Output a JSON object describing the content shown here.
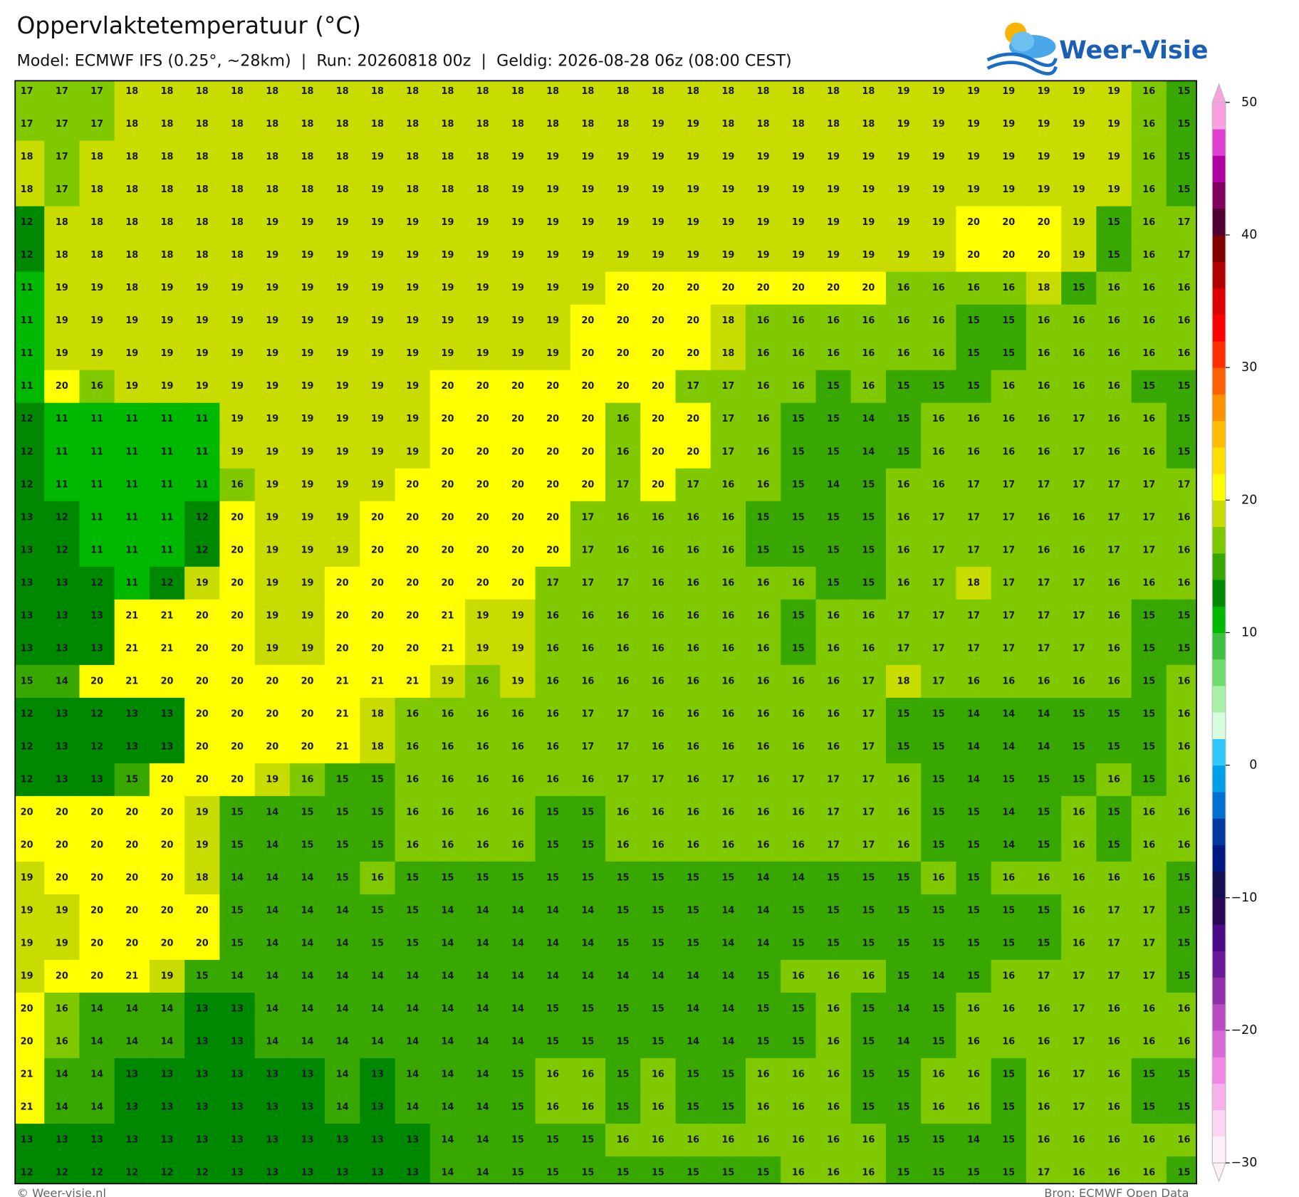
{
  "header": {
    "title": "Oppervlaktetemperatuur (°C)",
    "subtitle": "Model: ECMWF IFS (0.25°, ~28km)  |  Run: 20260818 00z  |  Geldig: 2026-08-28 06z (08:00 CEST)",
    "logo": "Weer-Visie"
  },
  "grid": {
    "rows": [
      [
        17,
        17,
        17,
        18,
        18,
        18,
        18,
        18,
        18,
        18,
        18,
        18,
        18,
        18,
        18,
        18,
        18,
        18,
        18,
        18,
        18,
        18,
        18,
        18,
        18,
        19,
        19,
        19,
        19,
        19,
        19,
        19,
        16,
        15
      ],
      [
        17,
        17,
        17,
        18,
        18,
        18,
        18,
        18,
        18,
        18,
        18,
        18,
        18,
        18,
        18,
        18,
        18,
        18,
        19,
        19,
        18,
        18,
        18,
        18,
        18,
        19,
        19,
        19,
        19,
        19,
        19,
        19,
        16,
        15
      ],
      [
        18,
        17,
        18,
        18,
        18,
        18,
        18,
        18,
        18,
        18,
        19,
        18,
        18,
        18,
        19,
        19,
        19,
        19,
        19,
        19,
        19,
        19,
        19,
        19,
        19,
        19,
        19,
        19,
        19,
        19,
        19,
        19,
        16,
        15
      ],
      [
        18,
        17,
        18,
        18,
        18,
        18,
        18,
        18,
        18,
        18,
        19,
        18,
        18,
        18,
        19,
        19,
        19,
        19,
        19,
        19,
        19,
        19,
        19,
        19,
        19,
        19,
        19,
        19,
        19,
        19,
        19,
        19,
        16,
        15
      ],
      [
        12,
        18,
        18,
        18,
        18,
        18,
        18,
        19,
        19,
        19,
        19,
        19,
        19,
        19,
        19,
        19,
        19,
        19,
        19,
        19,
        19,
        19,
        19,
        19,
        19,
        19,
        19,
        20,
        20,
        20,
        19,
        15,
        16,
        17
      ],
      [
        12,
        18,
        18,
        18,
        18,
        18,
        18,
        19,
        19,
        19,
        19,
        19,
        19,
        19,
        19,
        19,
        19,
        19,
        19,
        19,
        19,
        19,
        19,
        19,
        19,
        19,
        19,
        20,
        20,
        20,
        19,
        15,
        16,
        17
      ],
      [
        11,
        19,
        19,
        18,
        19,
        19,
        19,
        19,
        19,
        19,
        19,
        19,
        19,
        19,
        19,
        19,
        19,
        20,
        20,
        20,
        20,
        20,
        20,
        20,
        20,
        16,
        16,
        16,
        16,
        18,
        15,
        16,
        16,
        16
      ],
      [
        11,
        19,
        19,
        19,
        19,
        19,
        19,
        19,
        19,
        19,
        19,
        19,
        19,
        19,
        19,
        19,
        20,
        20,
        20,
        20,
        18,
        16,
        16,
        16,
        16,
        16,
        16,
        15,
        15,
        16,
        16,
        16,
        16,
        16
      ],
      [
        11,
        19,
        19,
        19,
        19,
        19,
        19,
        19,
        19,
        19,
        19,
        19,
        19,
        19,
        19,
        19,
        20,
        20,
        20,
        20,
        18,
        16,
        16,
        16,
        16,
        16,
        16,
        15,
        15,
        16,
        16,
        16,
        16,
        16
      ],
      [
        11,
        20,
        16,
        19,
        19,
        19,
        19,
        19,
        19,
        19,
        19,
        19,
        20,
        20,
        20,
        20,
        20,
        20,
        20,
        17,
        17,
        16,
        16,
        15,
        16,
        15,
        15,
        15,
        16,
        16,
        16,
        16,
        15,
        15
      ],
      [
        12,
        11,
        11,
        11,
        11,
        11,
        19,
        19,
        19,
        19,
        19,
        19,
        20,
        20,
        20,
        20,
        20,
        16,
        20,
        20,
        17,
        16,
        15,
        15,
        14,
        15,
        16,
        16,
        16,
        16,
        17,
        16,
        16,
        15
      ],
      [
        12,
        11,
        11,
        11,
        11,
        11,
        19,
        19,
        19,
        19,
        19,
        19,
        20,
        20,
        20,
        20,
        20,
        16,
        20,
        20,
        17,
        16,
        15,
        15,
        14,
        15,
        16,
        16,
        16,
        16,
        17,
        16,
        16,
        15
      ],
      [
        12,
        11,
        11,
        11,
        11,
        11,
        16,
        19,
        19,
        19,
        19,
        20,
        20,
        20,
        20,
        20,
        20,
        17,
        20,
        17,
        16,
        16,
        15,
        14,
        15,
        16,
        16,
        17,
        17,
        17,
        17,
        17,
        17,
        17
      ],
      [
        13,
        12,
        11,
        11,
        11,
        12,
        20,
        19,
        19,
        19,
        20,
        20,
        20,
        20,
        20,
        20,
        17,
        16,
        16,
        16,
        16,
        15,
        15,
        15,
        15,
        16,
        17,
        17,
        17,
        16,
        16,
        17,
        17,
        16
      ],
      [
        13,
        12,
        11,
        11,
        11,
        12,
        20,
        19,
        19,
        19,
        20,
        20,
        20,
        20,
        20,
        20,
        17,
        16,
        16,
        16,
        16,
        15,
        15,
        15,
        15,
        16,
        17,
        17,
        17,
        16,
        16,
        17,
        17,
        16
      ],
      [
        13,
        13,
        12,
        11,
        12,
        19,
        20,
        19,
        19,
        20,
        20,
        20,
        20,
        20,
        20,
        17,
        17,
        17,
        16,
        16,
        16,
        16,
        16,
        15,
        15,
        16,
        17,
        18,
        17,
        17,
        17,
        16,
        16,
        16
      ],
      [
        13,
        13,
        13,
        21,
        21,
        20,
        20,
        19,
        19,
        20,
        20,
        20,
        21,
        19,
        19,
        16,
        16,
        16,
        16,
        16,
        16,
        16,
        15,
        16,
        16,
        17,
        17,
        17,
        17,
        17,
        17,
        16,
        15,
        15
      ],
      [
        13,
        13,
        13,
        21,
        21,
        20,
        20,
        19,
        19,
        20,
        20,
        20,
        21,
        19,
        19,
        16,
        16,
        16,
        16,
        16,
        16,
        16,
        15,
        16,
        16,
        17,
        17,
        17,
        17,
        17,
        17,
        16,
        15,
        15
      ],
      [
        15,
        14,
        20,
        21,
        20,
        20,
        20,
        20,
        20,
        21,
        21,
        21,
        19,
        16,
        19,
        16,
        16,
        16,
        16,
        16,
        16,
        16,
        16,
        16,
        17,
        18,
        17,
        16,
        16,
        16,
        16,
        16,
        15,
        16
      ],
      [
        12,
        13,
        12,
        13,
        13,
        20,
        20,
        20,
        20,
        21,
        18,
        16,
        16,
        16,
        16,
        16,
        17,
        17,
        16,
        16,
        16,
        16,
        16,
        16,
        17,
        15,
        15,
        14,
        14,
        14,
        15,
        15,
        15,
        16
      ],
      [
        12,
        13,
        12,
        13,
        13,
        20,
        20,
        20,
        20,
        21,
        18,
        16,
        16,
        16,
        16,
        16,
        17,
        17,
        16,
        16,
        16,
        16,
        16,
        16,
        17,
        15,
        15,
        14,
        14,
        14,
        15,
        15,
        15,
        16
      ],
      [
        12,
        13,
        13,
        15,
        20,
        20,
        20,
        19,
        16,
        15,
        15,
        16,
        16,
        16,
        16,
        16,
        16,
        17,
        17,
        16,
        17,
        16,
        17,
        17,
        17,
        16,
        15,
        14,
        15,
        15,
        15,
        16,
        15,
        16
      ],
      [
        20,
        20,
        20,
        20,
        20,
        19,
        15,
        14,
        15,
        15,
        15,
        16,
        16,
        16,
        16,
        15,
        15,
        16,
        16,
        16,
        16,
        16,
        16,
        17,
        17,
        16,
        15,
        15,
        14,
        15,
        16,
        15,
        16,
        16
      ],
      [
        20,
        20,
        20,
        20,
        20,
        19,
        15,
        14,
        15,
        15,
        15,
        16,
        16,
        16,
        16,
        15,
        15,
        16,
        16,
        16,
        16,
        16,
        16,
        17,
        17,
        16,
        15,
        15,
        14,
        15,
        16,
        15,
        16,
        16
      ],
      [
        19,
        20,
        20,
        20,
        20,
        18,
        14,
        14,
        14,
        15,
        16,
        15,
        15,
        15,
        15,
        15,
        15,
        15,
        15,
        15,
        15,
        14,
        14,
        15,
        15,
        15,
        16,
        15,
        16,
        16,
        16,
        16,
        16,
        15
      ],
      [
        19,
        19,
        20,
        20,
        20,
        20,
        15,
        14,
        14,
        14,
        15,
        15,
        14,
        14,
        14,
        14,
        14,
        15,
        15,
        15,
        14,
        14,
        15,
        15,
        15,
        15,
        15,
        15,
        15,
        15,
        16,
        17,
        17,
        15
      ],
      [
        19,
        19,
        20,
        20,
        20,
        20,
        15,
        14,
        14,
        14,
        15,
        15,
        14,
        14,
        14,
        14,
        14,
        15,
        15,
        15,
        14,
        14,
        15,
        15,
        15,
        15,
        15,
        15,
        15,
        15,
        16,
        17,
        17,
        15
      ],
      [
        19,
        20,
        20,
        21,
        19,
        15,
        14,
        14,
        14,
        14,
        14,
        14,
        14,
        14,
        14,
        14,
        14,
        14,
        14,
        14,
        14,
        15,
        16,
        16,
        16,
        15,
        14,
        15,
        16,
        17,
        17,
        17,
        17,
        15
      ],
      [
        20,
        16,
        14,
        14,
        14,
        13,
        13,
        14,
        14,
        14,
        14,
        14,
        14,
        14,
        14,
        15,
        15,
        15,
        15,
        14,
        14,
        15,
        15,
        16,
        15,
        14,
        15,
        16,
        16,
        16,
        17,
        16,
        16,
        16
      ],
      [
        20,
        16,
        14,
        14,
        14,
        13,
        13,
        14,
        14,
        14,
        14,
        14,
        14,
        14,
        14,
        15,
        15,
        15,
        15,
        14,
        14,
        15,
        15,
        16,
        15,
        14,
        15,
        16,
        16,
        16,
        17,
        16,
        16,
        16
      ],
      [
        21,
        14,
        14,
        13,
        13,
        13,
        13,
        13,
        13,
        14,
        13,
        14,
        14,
        14,
        15,
        16,
        16,
        15,
        16,
        15,
        15,
        16,
        16,
        16,
        15,
        15,
        16,
        16,
        15,
        16,
        17,
        16,
        15,
        15
      ],
      [
        21,
        14,
        14,
        13,
        13,
        13,
        13,
        13,
        13,
        14,
        13,
        14,
        14,
        14,
        15,
        16,
        16,
        15,
        16,
        15,
        15,
        16,
        16,
        16,
        15,
        15,
        16,
        16,
        15,
        16,
        17,
        16,
        15,
        15
      ],
      [
        13,
        13,
        13,
        13,
        13,
        13,
        13,
        13,
        13,
        13,
        13,
        13,
        14,
        14,
        15,
        15,
        15,
        16,
        16,
        16,
        16,
        16,
        16,
        16,
        16,
        15,
        15,
        14,
        15,
        16,
        16,
        16,
        16,
        16
      ],
      [
        12,
        12,
        12,
        12,
        12,
        12,
        13,
        13,
        13,
        13,
        13,
        13,
        14,
        14,
        15,
        15,
        15,
        15,
        15,
        15,
        15,
        15,
        16,
        16,
        16,
        15,
        15,
        15,
        15,
        17,
        16,
        16,
        16,
        15
      ]
    ]
  },
  "colorbar": {
    "min": -30,
    "max": 50,
    "ticks": [
      50,
      40,
      30,
      20,
      10,
      0,
      {
        "value": -10,
        "label": "−10"
      },
      {
        "value": -20,
        "label": "−20"
      },
      {
        "value": -30,
        "label": "−30"
      }
    ],
    "colors": [
      "#fdf0fb",
      "#fdd8f5",
      "#f8b0ec",
      "#ee88e2",
      "#d868d4",
      "#b84cc0",
      "#9030a8",
      "#6a1a98",
      "#4a0a88",
      "#2a0858",
      "#141050",
      "#001880",
      "#0038a0",
      "#0070d0",
      "#00a0e8",
      "#30c8f8",
      "#d8fce0",
      "#a8f0a8",
      "#70dc70",
      "#40c040",
      "#00b800",
      "#008800",
      "#38a800",
      "#80c800",
      "#c8dc00",
      "#ffff00",
      "#ffdd00",
      "#ffbb00",
      "#ff9000",
      "#ff6000",
      "#ff3000",
      "#ff0000",
      "#dd0000",
      "#b00000",
      "#800000",
      "#500030",
      "#800060",
      "#b000a0",
      "#e040d0",
      "#f8a0e0"
    ]
  },
  "footer": {
    "left": "© Weer-visie.nl",
    "right": "Bron: ECMWF Open Data"
  }
}
